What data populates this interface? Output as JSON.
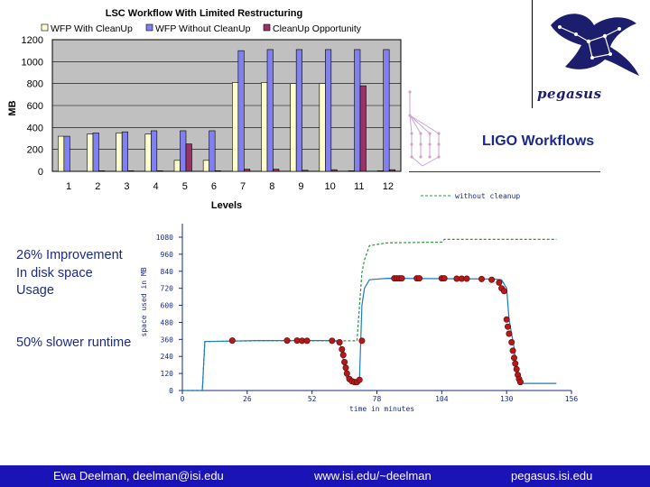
{
  "slide": {
    "improvement_text": "26% Improvement In disk space Usage",
    "runtime_text": "50% slower runtime",
    "ligo_title": "LIGO Workflows",
    "logo_text": "pegasus"
  },
  "footer": {
    "author": "Ewa Deelman, deelman@isi.edu",
    "url": "www.isi.edu/~deelman",
    "site": "pegasus.isi.edu"
  },
  "colors": {
    "footer_bg": "#1a13b5",
    "text_blue": "#1b2a8a",
    "with_cleanup": "#ffffcc",
    "without_cleanup": "#8080ee",
    "opportunity": "#993366",
    "line_with": "#1f7ac6",
    "line_without": "#2a9a3a",
    "markers": "#b41818"
  },
  "chart_data": [
    {
      "type": "bar",
      "title": "LSC Workflow With Limited Restructuring",
      "xlabel": "Levels",
      "ylabel": "MB",
      "categories": [
        "1",
        "2",
        "3",
        "4",
        "5",
        "6",
        "7",
        "8",
        "9",
        "10",
        "11",
        "12"
      ],
      "ylim": [
        0,
        1200
      ],
      "yticks": [
        0,
        200,
        400,
        600,
        800,
        1000,
        1200
      ],
      "grid": true,
      "legend_position": "top",
      "series": [
        {
          "name": "WFP With CleanUp",
          "values": [
            320,
            340,
            350,
            340,
            100,
            100,
            810,
            810,
            800,
            800,
            5,
            5
          ]
        },
        {
          "name": "WFP Without CleanUp",
          "values": [
            320,
            350,
            360,
            370,
            370,
            370,
            1100,
            1110,
            1110,
            1110,
            1110,
            1110
          ]
        },
        {
          "name": "CleanUp Opportunity",
          "values": [
            0,
            5,
            5,
            5,
            250,
            5,
            20,
            20,
            10,
            15,
            780,
            15
          ]
        }
      ]
    },
    {
      "type": "line",
      "xlabel": "time in minutes",
      "ylabel": "space used in MB",
      "xlim": [
        0,
        156
      ],
      "ylim": [
        0,
        1080
      ],
      "xticks": [
        0,
        26,
        52,
        78,
        104,
        130,
        156
      ],
      "yticks": [
        0,
        120,
        240,
        360,
        480,
        600,
        720,
        840,
        960,
        1080
      ],
      "legend_entries": [
        "without cleanup"
      ],
      "legend_position": "top-right",
      "series": [
        {
          "name": "without cleanup",
          "style": "dashed",
          "points": [
            [
              0,
              0
            ],
            [
              8,
              0
            ],
            [
              9,
              345
            ],
            [
              30,
              350
            ],
            [
              60,
              350
            ],
            [
              70,
              350
            ],
            [
              72,
              830
            ],
            [
              73,
              920
            ],
            [
              75,
              1020
            ],
            [
              82,
              1040
            ],
            [
              104,
              1045
            ],
            [
              105,
              1065
            ],
            [
              150,
              1065
            ]
          ]
        },
        {
          "series_role": "with cleanup",
          "style": "solid",
          "points": [
            [
              0,
              0
            ],
            [
              8,
              0
            ],
            [
              9,
              345
            ],
            [
              30,
              352
            ],
            [
              60,
              352
            ],
            [
              63,
              340
            ],
            [
              64,
              280
            ],
            [
              65,
              150
            ],
            [
              66,
              80
            ],
            [
              68,
              60
            ],
            [
              70,
              60
            ],
            [
              71,
              80
            ],
            [
              72,
              600
            ],
            [
              73,
              720
            ],
            [
              75,
              780
            ],
            [
              82,
              790
            ],
            [
              125,
              785
            ],
            [
              128,
              780
            ],
            [
              130,
              720
            ],
            [
              131,
              500
            ],
            [
              133,
              300
            ],
            [
              134,
              120
            ],
            [
              135,
              60
            ],
            [
              136,
              50
            ],
            [
              150,
              50
            ]
          ]
        }
      ],
      "markers": [
        [
          20,
          352
        ],
        [
          42,
          352
        ],
        [
          46,
          352
        ],
        [
          48,
          350
        ],
        [
          50,
          350
        ],
        [
          60,
          350
        ],
        [
          63,
          340
        ],
        [
          64,
          290
        ],
        [
          64.5,
          250
        ],
        [
          65,
          200
        ],
        [
          65.5,
          160
        ],
        [
          66,
          120
        ],
        [
          67,
          80
        ],
        [
          68,
          65
        ],
        [
          69,
          60
        ],
        [
          70,
          60
        ],
        [
          71,
          75
        ],
        [
          72,
          350
        ],
        [
          85,
          790
        ],
        [
          86,
          790
        ],
        [
          87,
          790
        ],
        [
          88,
          790
        ],
        [
          94,
          790
        ],
        [
          95,
          790
        ],
        [
          104,
          790
        ],
        [
          105,
          790
        ],
        [
          110,
          788
        ],
        [
          112,
          788
        ],
        [
          114,
          788
        ],
        [
          120,
          785
        ],
        [
          124,
          780
        ],
        [
          127,
          760
        ],
        [
          128,
          720
        ],
        [
          129,
          700
        ],
        [
          130,
          500
        ],
        [
          130.5,
          450
        ],
        [
          131,
          400
        ],
        [
          132,
          340
        ],
        [
          132.5,
          280
        ],
        [
          133,
          230
        ],
        [
          133.5,
          190
        ],
        [
          134,
          150
        ],
        [
          134.5,
          110
        ],
        [
          135,
          80
        ],
        [
          135.5,
          60
        ]
      ]
    }
  ]
}
